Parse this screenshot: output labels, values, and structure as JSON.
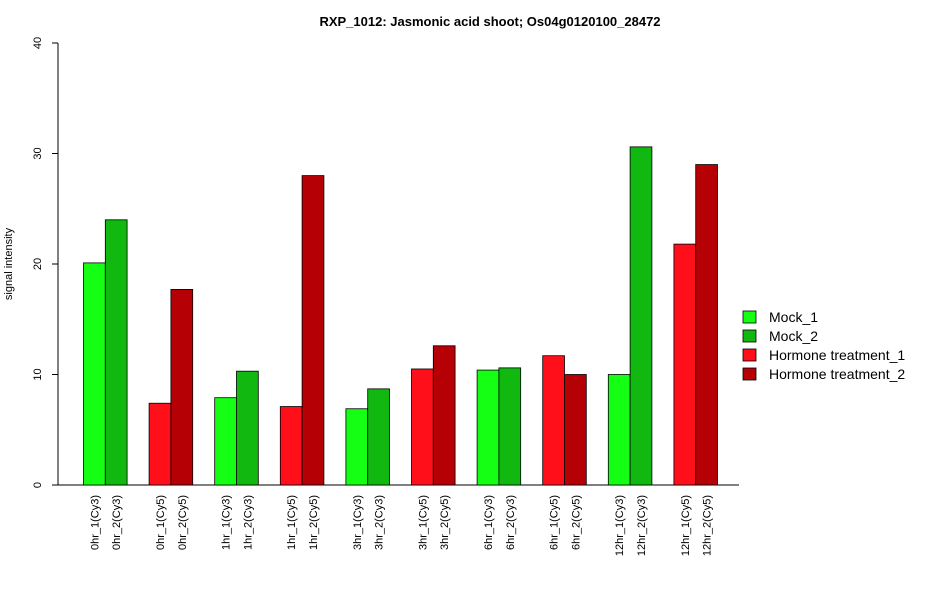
{
  "chart_data": {
    "type": "bar",
    "title": "RXP_1012: Jasmonic acid shoot; Os04g0120100_28472",
    "ylabel": "signal intensity",
    "xlabel": "",
    "ylim": [
      0,
      40
    ],
    "yticks": [
      0,
      10,
      20,
      30,
      40
    ],
    "grid": false,
    "legend_position": "right",
    "legend": [
      {
        "name": "Mock_1",
        "color": "#14ff14"
      },
      {
        "name": "Mock_2",
        "color": "#10b810"
      },
      {
        "name": "Hormone treatment_1",
        "color": "#ff0f1a"
      },
      {
        "name": "Hormone treatment_2",
        "color": "#b50006"
      }
    ],
    "groups": [
      {
        "bars": [
          {
            "label": "0hr_1(Cy3)",
            "value": 20.1,
            "color": "#14ff14"
          },
          {
            "label": "0hr_2(Cy3)",
            "value": 24.0,
            "color": "#10b810"
          }
        ]
      },
      {
        "bars": [
          {
            "label": "0hr_1(Cy5)",
            "value": 7.4,
            "color": "#ff0f1a"
          },
          {
            "label": "0hr_2(Cy5)",
            "value": 17.7,
            "color": "#b50006"
          }
        ]
      },
      {
        "bars": [
          {
            "label": "1hr_1(Cy3)",
            "value": 7.9,
            "color": "#14ff14"
          },
          {
            "label": "1hr_2(Cy3)",
            "value": 10.3,
            "color": "#10b810"
          }
        ]
      },
      {
        "bars": [
          {
            "label": "1hr_1(Cy5)",
            "value": 7.1,
            "color": "#ff0f1a"
          },
          {
            "label": "1hr_2(Cy5)",
            "value": 28.0,
            "color": "#b50006"
          }
        ]
      },
      {
        "bars": [
          {
            "label": "3hr_1(Cy3)",
            "value": 6.9,
            "color": "#14ff14"
          },
          {
            "label": "3hr_2(Cy3)",
            "value": 8.7,
            "color": "#10b810"
          }
        ]
      },
      {
        "bars": [
          {
            "label": "3hr_1(Cy5)",
            "value": 10.5,
            "color": "#ff0f1a"
          },
          {
            "label": "3hr_2(Cy5)",
            "value": 12.6,
            "color": "#b50006"
          }
        ]
      },
      {
        "bars": [
          {
            "label": "6hr_1(Cy3)",
            "value": 10.4,
            "color": "#14ff14"
          },
          {
            "label": "6hr_2(Cy3)",
            "value": 10.6,
            "color": "#10b810"
          }
        ]
      },
      {
        "bars": [
          {
            "label": "6hr_1(Cy5)",
            "value": 11.7,
            "color": "#ff0f1a"
          },
          {
            "label": "6hr_2(Cy5)",
            "value": 10.0,
            "color": "#b50006"
          }
        ]
      },
      {
        "bars": [
          {
            "label": "12hr_1(Cy3)",
            "value": 10.0,
            "color": "#14ff14"
          },
          {
            "label": "12hr_2(Cy3)",
            "value": 30.6,
            "color": "#10b810"
          }
        ]
      },
      {
        "bars": [
          {
            "label": "12hr_1(Cy5)",
            "value": 21.8,
            "color": "#ff0f1a"
          },
          {
            "label": "12hr_2(Cy5)",
            "value": 29.0,
            "color": "#b50006"
          }
        ]
      }
    ]
  }
}
